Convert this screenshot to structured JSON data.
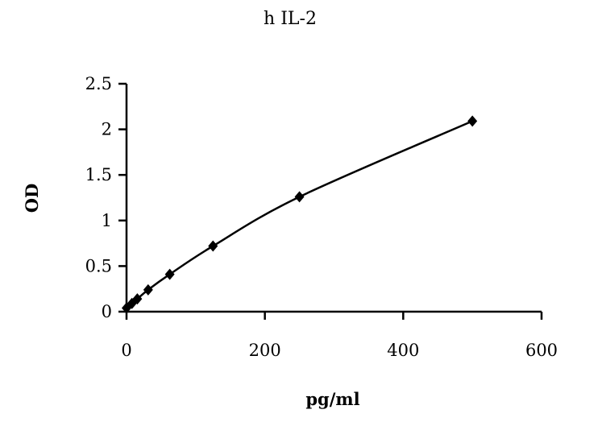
{
  "chart_data": {
    "type": "scatter",
    "title": "h IL-2",
    "xlabel": "pg/ml",
    "ylabel": "OD",
    "xlim": [
      0,
      600
    ],
    "ylim": [
      0,
      2.5
    ],
    "xticks": [
      "0",
      "200",
      "400",
      "600"
    ],
    "yticks": [
      "0",
      "0.5",
      "1",
      "1.5",
      "2",
      "2.5"
    ],
    "grid": false,
    "trendline": "smooth curve through points",
    "series": [
      {
        "x": [
          0,
          7.8,
          15.6,
          31.25,
          62.5,
          125,
          250,
          500
        ],
        "y": [
          0.04,
          0.09,
          0.14,
          0.24,
          0.41,
          0.72,
          1.26,
          2.09
        ]
      }
    ],
    "colors": {
      "marker": "#000000",
      "line": "#000000"
    }
  }
}
